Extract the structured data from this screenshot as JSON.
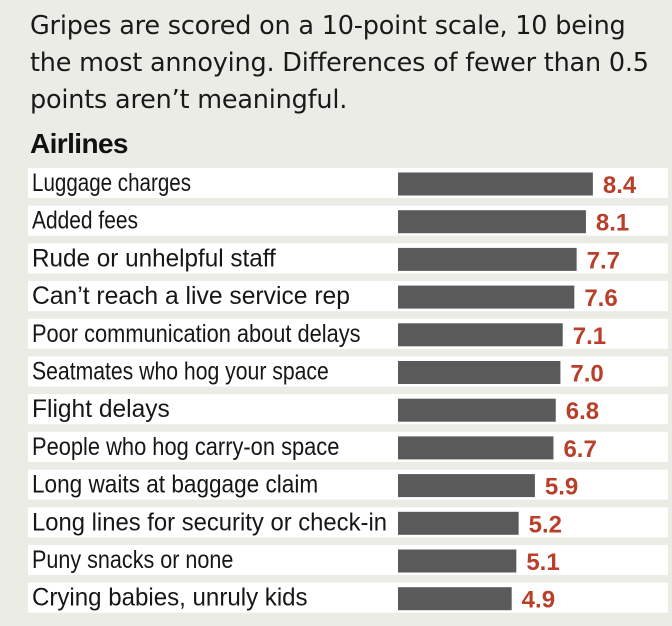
{
  "intro_text": "Gripes are scored on a 10-point scale, 10 being the most annoying. Differences of fewer than 0.5 points aren’t meaningful.",
  "colors": {
    "bar": "#5a5a5a",
    "value": "#b8402a",
    "row_background": "#ffffff",
    "page_background": "#ecece7"
  },
  "chart_data": {
    "type": "bar",
    "orientation": "horizontal",
    "title": "Airlines",
    "categories": [
      "Luggage charges",
      "Added fees",
      "Rude or unhelpful staff",
      "Can’t reach a live service rep",
      "Poor communication about delays",
      "Seatmates who hog your space",
      "Flight delays",
      "People who hog carry-on space",
      "Long waits at baggage claim",
      "Long lines for security or check-in",
      "Puny snacks or none",
      "Crying babies, unruly kids"
    ],
    "values": [
      8.4,
      8.1,
      7.7,
      7.6,
      7.1,
      7.0,
      6.8,
      6.7,
      5.9,
      5.2,
      5.1,
      4.9
    ],
    "value_labels": [
      "8.4",
      "8.1",
      "7.7",
      "7.6",
      "7.1",
      "7.0",
      "6.8",
      "6.7",
      "5.9",
      "5.2",
      "5.1",
      "4.9"
    ],
    "scale_max": 10,
    "grid": false,
    "legend": "none"
  }
}
